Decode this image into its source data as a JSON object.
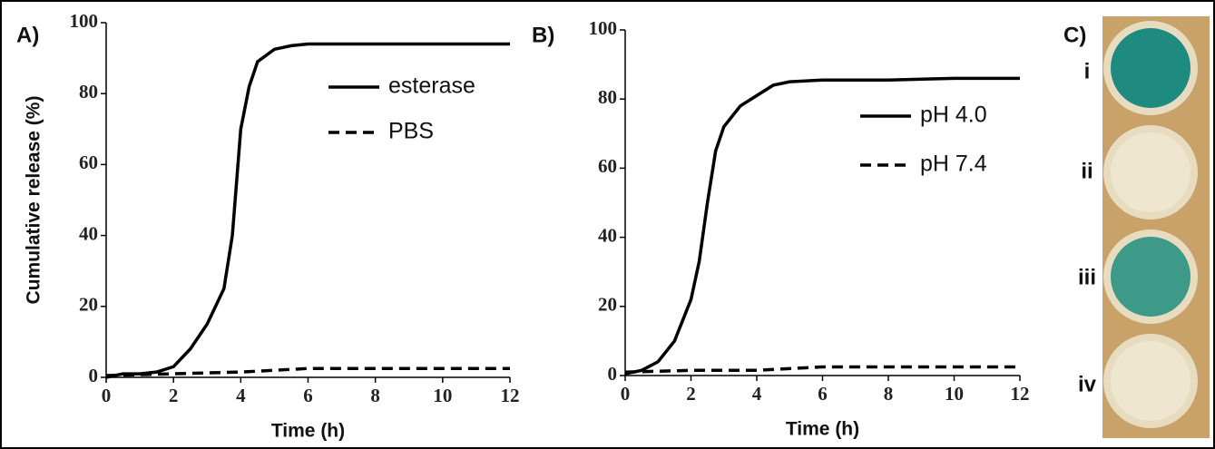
{
  "chart_data": [
    {
      "type": "line",
      "panel_label": "A)",
      "xlabel": "Time (h)",
      "ylabel": "Cumulative release (%)",
      "xlim": [
        0,
        12
      ],
      "xticks": [
        0,
        2,
        4,
        6,
        8,
        10,
        12
      ],
      "ylim": [
        0,
        100
      ],
      "yticks": [
        0,
        20,
        40,
        60,
        80,
        100
      ],
      "series": [
        {
          "name": "esterase",
          "color": "#000000",
          "style": "solid",
          "x": [
            0,
            0.5,
            1,
            1.5,
            2,
            2.5,
            3,
            3.5,
            3.75,
            4,
            4.25,
            4.5,
            5,
            5.5,
            6,
            8,
            10,
            12
          ],
          "values": [
            0,
            1,
            1,
            1.5,
            3,
            8,
            15,
            25,
            40,
            70,
            82,
            89,
            92.5,
            93.5,
            94,
            94,
            94,
            94
          ]
        },
        {
          "name": "PBS",
          "color": "#000000",
          "style": "dashed",
          "x": [
            0,
            2,
            4,
            6,
            8,
            10,
            12
          ],
          "values": [
            0.5,
            1,
            1.5,
            2.5,
            2.5,
            2.5,
            2.5
          ]
        }
      ]
    },
    {
      "type": "line",
      "panel_label": "B)",
      "xlabel": "Time (h)",
      "xlim": [
        0,
        12
      ],
      "xticks": [
        0,
        2,
        4,
        6,
        8,
        10,
        12
      ],
      "ylim": [
        0,
        100
      ],
      "yticks": [
        0,
        20,
        40,
        60,
        80,
        100
      ],
      "series": [
        {
          "name": "pH 4.0",
          "color": "#000000",
          "style": "solid",
          "x": [
            0,
            0.5,
            1,
            1.5,
            2,
            2.25,
            2.5,
            2.75,
            3,
            3.5,
            4,
            4.5,
            5,
            6,
            8,
            10,
            12
          ],
          "values": [
            0.5,
            1.5,
            4,
            10,
            22,
            33,
            50,
            65,
            72,
            78,
            81,
            84,
            85,
            85.5,
            85.5,
            86,
            86
          ]
        },
        {
          "name": "pH 7.4",
          "color": "#000000",
          "style": "dashed",
          "x": [
            0,
            2,
            4,
            6,
            8,
            10,
            12
          ],
          "values": [
            1,
            1.5,
            1.5,
            2.5,
            2.5,
            2.5,
            2.5
          ]
        }
      ]
    }
  ],
  "panel_c": {
    "label": "C)",
    "wells": [
      "i",
      "ii",
      "iii",
      "iv"
    ]
  }
}
